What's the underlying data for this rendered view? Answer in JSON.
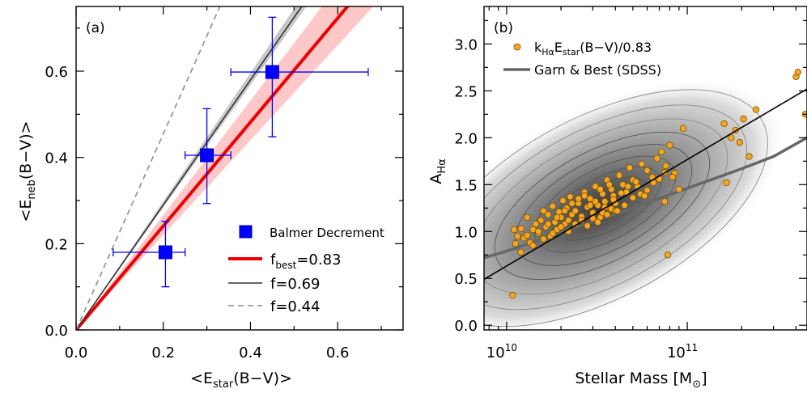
{
  "chart_data": [
    {
      "type": "scatter",
      "panel_label": "(a)",
      "xlabel": "<E_star(B−V)>",
      "ylabel": "<E_neb(B−V)>",
      "xlim": [
        0,
        0.75
      ],
      "ylim": [
        0,
        0.75
      ],
      "xticks": [
        0.0,
        0.2,
        0.4,
        0.6
      ],
      "xtick_labels": [
        "0.0",
        "0.2",
        "0.4",
        "0.6"
      ],
      "yticks": [
        0.0,
        0.2,
        0.4,
        0.6
      ],
      "ytick_labels": [
        "0.0",
        "0.2",
        "0.4",
        "0.6"
      ],
      "points": [
        {
          "x": 0.205,
          "y": 0.18,
          "xerr_low": 0.12,
          "xerr_high": 0.045,
          "yerr_low": 0.08,
          "yerr_high": 0.072
        },
        {
          "x": 0.3,
          "y": 0.405,
          "xerr_low": 0.05,
          "xerr_high": 0.055,
          "yerr_low": 0.112,
          "yerr_high": 0.108
        },
        {
          "x": 0.45,
          "y": 0.598,
          "xerr_low": 0.095,
          "xerr_high": 0.22,
          "yerr_low": 0.15,
          "yerr_high": 0.127
        }
      ],
      "lines": [
        {
          "name": "f_best=0.83",
          "slope": 1.2048,
          "color": "#ee0000",
          "style": "solid",
          "band": [
            1.1,
            1.33
          ],
          "band_color": "#ffc8c8"
        },
        {
          "name": "f=0.69",
          "slope": 1.4493,
          "color": "#333333",
          "style": "solid",
          "band": [
            1.42,
            1.49
          ],
          "band_color": "#c8c8c8"
        },
        {
          "name": "f=0.44",
          "slope": 2.2727,
          "color": "#999999",
          "style": "dashed"
        }
      ],
      "legend": {
        "position": "bottom-right",
        "marker_label": "Balmer Decrement",
        "marker_color": "#0000ff",
        "entries": [
          "f_best=0.83",
          "f=0.69",
          "f=0.44"
        ]
      }
    },
    {
      "type": "scatter",
      "panel_label": "(b)",
      "xlabel": "Stellar Mass [M☉]",
      "ylabel": "A_Hα",
      "xscale": "log",
      "xlim": [
        7500000000.0,
        460000000000.0
      ],
      "ylim": [
        -0.05,
        3.4
      ],
      "xticks": [
        10000000000.0,
        100000000000.0
      ],
      "xtick_labels": [
        "10^10",
        "10^11"
      ],
      "yticks": [
        0.0,
        0.5,
        1.0,
        1.5,
        2.0,
        2.5,
        3.0
      ],
      "ytick_labels": [
        "0.0",
        "0.5",
        "1.0",
        "1.5",
        "2.0",
        "2.5",
        "3.0"
      ],
      "black_fit": {
        "x": [
          7500000000.0,
          460000000000.0
        ],
        "y": [
          0.49,
          2.52
        ]
      },
      "garn_best_curve": {
        "x": [
          7500000000.0,
          10000000000.0,
          20000000000.0,
          50000000000.0,
          100000000000.0,
          200000000000.0,
          300000000000.0,
          460000000000.0
        ],
        "y": [
          0.72,
          0.79,
          0.99,
          1.25,
          1.46,
          1.67,
          1.8,
          2.0
        ]
      },
      "points_x": [
        10800000000.0,
        11200000000.0,
        11500000000.0,
        12000000000.0,
        12500000000.0,
        13000000000.0,
        13500000000.0,
        14000000000.0,
        14500000000.0,
        15000000000.0,
        15500000000.0,
        16000000000.0,
        16500000000.0,
        17000000000.0,
        17500000000.0,
        18000000000.0,
        18500000000.0,
        19000000000.0,
        19500000000.0,
        20000000000.0,
        20500000000.0,
        21000000000.0,
        21500000000.0,
        22000000000.0,
        22500000000.0,
        23000000000.0,
        24000000000.0,
        25000000000.0,
        26000000000.0,
        27000000000.0,
        28000000000.0,
        29000000000.0,
        30000000000.0,
        31000000000.0,
        32000000000.0,
        33000000000.0,
        34000000000.0,
        35000000000.0,
        36000000000.0,
        37000000000.0,
        38000000000.0,
        39000000000.0,
        40000000000.0,
        42000000000.0,
        44000000000.0,
        46000000000.0,
        48000000000.0,
        50000000000.0,
        53000000000.0,
        56000000000.0,
        60000000000.0,
        64000000000.0,
        68000000000.0,
        72000000000.0,
        76000000000.0,
        80000000000.0,
        85000000000.0,
        90000000000.0,
        12000000000.0,
        14000000000.0,
        16000000000.0,
        18000000000.0,
        20000000000.0,
        22000000000.0,
        24000000000.0,
        26000000000.0,
        28000000000.0,
        30000000000.0,
        32000000000.0,
        34000000000.0,
        36000000000.0,
        38000000000.0,
        40000000000.0,
        45000000000.0,
        50000000000.0,
        55000000000.0,
        60000000000.0,
        65000000000.0,
        70000000000.0,
        75000000000.0,
        11000000000.0,
        13000000000.0,
        15000000000.0,
        17000000000.0,
        19000000000.0,
        21000000000.0,
        23000000000.0,
        25000000000.0,
        27000000000.0,
        29000000000.0,
        31000000000.0,
        33000000000.0,
        35000000000.0,
        37000000000.0,
        39000000000.0,
        41000000000.0,
        43000000000.0,
        47000000000.0,
        52000000000.0,
        58000000000.0,
        160000000000.0,
        175000000000.0,
        185000000000.0,
        195000000000.0,
        205000000000.0,
        220000000000.0,
        240000000000.0,
        400000000000.0,
        410000000000.0,
        450000000000.0,
        165000000000.0,
        78000000000.0,
        83000000000.0,
        95000000000.0,
        75000000000.0
      ],
      "points_y": [
        0.32,
        0.87,
        0.95,
        1.03,
        0.93,
        1.15,
        0.88,
        1.02,
        1.08,
        0.98,
        1.12,
        1.22,
        1.05,
        1.18,
        0.95,
        1.27,
        1.1,
        1.02,
        1.21,
        1.15,
        1.33,
        1.08,
        1.25,
        1.12,
        1.37,
        1.18,
        1.22,
        1.3,
        1.16,
        1.42,
        1.26,
        1.35,
        1.2,
        1.48,
        1.28,
        1.15,
        1.4,
        1.32,
        1.55,
        1.25,
        1.45,
        1.38,
        1.3,
        1.6,
        1.5,
        1.42,
        1.68,
        1.55,
        1.48,
        1.72,
        1.65,
        1.58,
        1.78,
        1.85,
        1.7,
        1.92,
        1.62,
        1.45,
        0.78,
        0.85,
        0.92,
        0.98,
        1.05,
        1.0,
        1.08,
        1.12,
        1.06,
        1.14,
        1.1,
        1.2,
        1.18,
        1.24,
        1.22,
        1.28,
        1.36,
        1.4,
        1.44,
        1.52,
        1.56,
        1.63,
        1.02,
        0.96,
        1.0,
        1.08,
        1.15,
        1.22,
        1.3,
        1.35,
        1.38,
        1.28,
        1.32,
        1.45,
        1.26,
        1.5,
        1.34,
        1.22,
        1.41,
        1.48,
        1.53,
        1.38,
        2.15,
        2.0,
        2.08,
        1.95,
        2.2,
        1.8,
        2.3,
        2.65,
        2.7,
        2.25,
        1.52,
        0.75,
        1.58,
        2.1,
        1.32
      ],
      "legend": {
        "position": "top-left",
        "entries": [
          "k_Hα E_star(B−V)/0.83",
          "Garn & Best (SDSS)"
        ]
      },
      "point_color": "#f5a623",
      "curve_color": "#666666"
    }
  ],
  "panel_a_text": {
    "label": "(a)",
    "xlabel_pre": "<E",
    "xlabel_sub": "star",
    "xlabel_post": "(B−V)>",
    "ylabel_pre": "<E",
    "ylabel_sub": "neb",
    "ylabel_post": "(B−V)>",
    "legend_marker_label": "Balmer Decrement",
    "legend_f_best_pre": "f",
    "legend_f_best_sub": "best",
    "legend_f_best_post": "=0.83",
    "legend_f2": "f=0.69",
    "legend_f3": "f=0.44"
  },
  "panel_b_text": {
    "label": "(b)",
    "xlabel_text": "Stellar Mass [M",
    "xlabel_sub": "⊙",
    "xlabel_close": "]",
    "ylabel_pre": "A",
    "ylabel_sub": "Hα",
    "legend1_pre": "k",
    "legend1_sub1": "Hα",
    "legend1_mid": "E",
    "legend1_sub2": "star",
    "legend1_post": "(B−V)/0.83",
    "legend2": "Garn & Best (SDSS)",
    "tick_base": "10",
    "tick_exp_1": "10",
    "tick_exp_2": "11"
  }
}
